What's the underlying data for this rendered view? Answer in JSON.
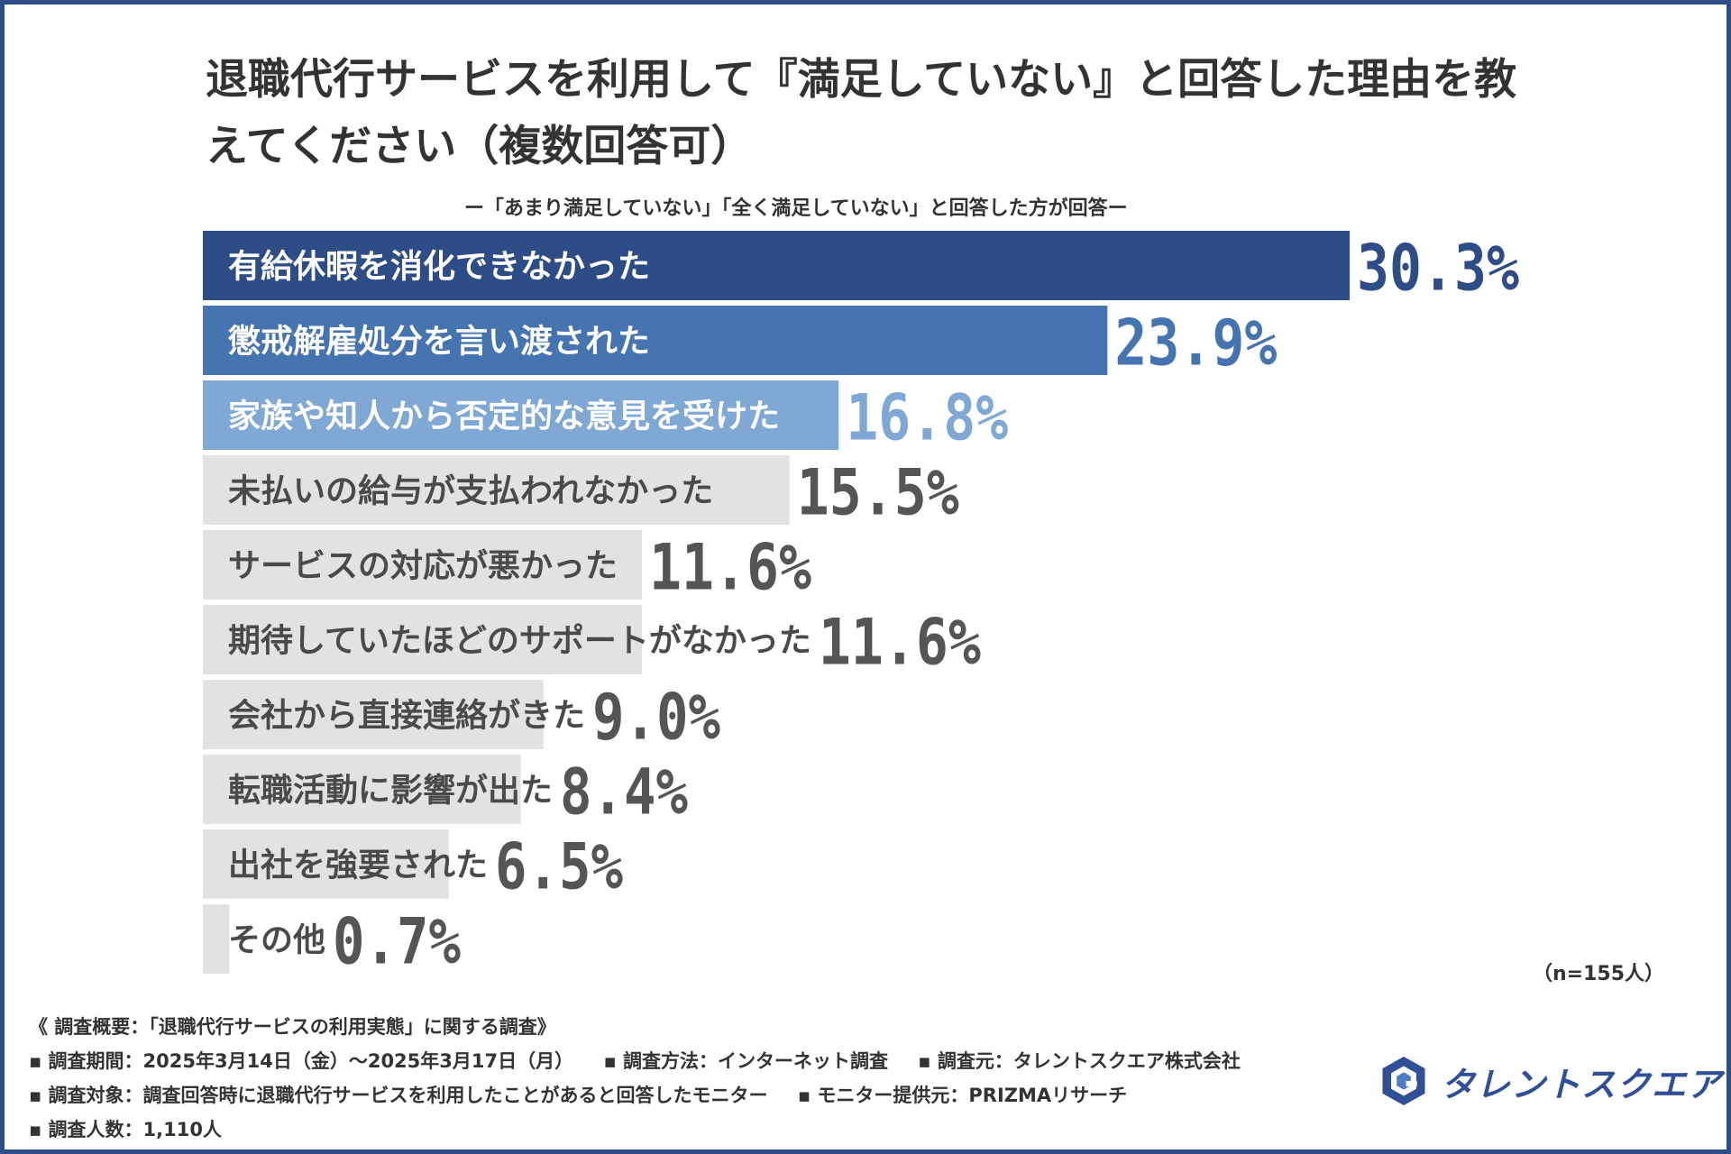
{
  "header": {
    "title": "退職代行サービスを利用して『満足していない』と回答した理由を教えてください（複数回答可）",
    "subtitle": "ー「あまり満足していない」「全く満足していない」と回答した方が回答ー"
  },
  "chart_data": {
    "type": "bar",
    "orientation": "horizontal",
    "title": "退職代行サービスを利用して『満足していない』と回答した理由を教えてください（複数回答可）",
    "categories": [
      "有給休暇を消化できなかった",
      "懲戒解雇処分を言い渡された",
      "家族や知人から否定的な意見を受けた",
      "未払いの給与が支払われなかった",
      "サービスの対応が悪かった",
      "期待していたほどのサポートがなかった",
      "会社から直接連絡がきた",
      "転職活動に影響が出た",
      "出社を強要された",
      "その他"
    ],
    "values": [
      30.3,
      23.9,
      16.8,
      15.5,
      11.6,
      11.6,
      9.0,
      8.4,
      6.5,
      0.7
    ],
    "value_labels": [
      "30.3%",
      "23.9%",
      "16.8%",
      "15.5%",
      "11.6%",
      "11.6%",
      "9.0%",
      "8.4%",
      "6.5%",
      "0.7%"
    ],
    "unit": "%",
    "xlim": [
      0,
      30.3
    ],
    "bar_colors": [
      "#2e4c86",
      "#4674b0",
      "#7fa8d4",
      "#e2e2e2",
      "#e2e2e2",
      "#e2e2e2",
      "#e2e2e2",
      "#e2e2e2",
      "#e2e2e2",
      "#e2e2e2"
    ],
    "label_colors": [
      "#ffffff",
      "#ffffff",
      "#ffffff",
      "#4a4a4a",
      "#4a4a4a",
      "#4a4a4a",
      "#4a4a4a",
      "#4a4a4a",
      "#4a4a4a",
      "#4a4a4a"
    ],
    "value_colors": [
      "#2e4c86",
      "#4674b0",
      "#7fa8d4",
      "#555555",
      "#555555",
      "#555555",
      "#555555",
      "#555555",
      "#555555",
      "#555555"
    ],
    "note": "（n=155人）"
  },
  "footer": {
    "heading": "《 調査概要：「退職代行サービスの利用実態」に関する調査》",
    "period": "調査期間：2025年3月14日（金）～2025年3月17日（月）",
    "method": "調査方法：インターネット調査",
    "organizer": "調査元：タレントスクエア株式会社",
    "target": "調査対象：調査回答時に退職代行サービスを利用したことがあると回答したモニター",
    "provider": "モニター提供元：PRIZMAリサーチ",
    "count": "調査人数：1,110人"
  },
  "logo": {
    "name": "タレントスクエア",
    "icon": "talent-square-logo-icon"
  },
  "colors": {
    "frame": "#2e4c86",
    "accent": "#2e4c86"
  }
}
